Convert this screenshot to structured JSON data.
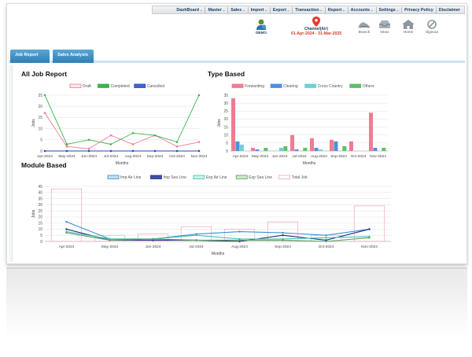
{
  "nav": {
    "items": [
      {
        "label": "DashBoard",
        "chev": true
      },
      {
        "label": "Master",
        "chev": true
      },
      {
        "label": "Sales",
        "chev": true
      },
      {
        "label": "Import",
        "chev": true
      },
      {
        "label": "Export",
        "chev": true
      },
      {
        "label": "Transaction",
        "chev": true
      },
      {
        "label": "Report",
        "chev": true
      },
      {
        "label": "Accounts",
        "chev": true
      },
      {
        "label": "Settings",
        "chev": true
      },
      {
        "label": "Privacy Policy",
        "chev": false
      },
      {
        "label": "Disclaimer",
        "chev": false
      }
    ]
  },
  "header": {
    "user_label": "DEMO",
    "channel_name": "Channel(Air)",
    "channel_dates": "01-Apr-2024 - 31-Mar-2025",
    "icons": [
      {
        "label": "Branch",
        "icon": "branch-icon"
      },
      {
        "label": "Inbox",
        "icon": "inbox-icon"
      },
      {
        "label": "Home",
        "icon": "home-icon"
      },
      {
        "label": "Signout",
        "icon": "signout-icon"
      }
    ]
  },
  "tabs": [
    {
      "label": "Job Report"
    },
    {
      "label": "Sales Analysis"
    }
  ],
  "panels": {
    "all_job_title": "All Job Report",
    "type_title": "Type Based",
    "module_title": "Module Based"
  },
  "colors": {
    "draft": "#f07c93",
    "completed": "#3cb44b",
    "cancelled": "#2546b8",
    "forwarding": "#f07c93",
    "clearing": "#4f8fe0",
    "cross_country": "#6fcfd6",
    "others": "#5fbf6a",
    "imp_air": "#3a8fd8",
    "imp_sea": "#1f2e8a",
    "exp_air": "#45c2b1",
    "exp_sea": "#5aa35a",
    "total_job": "#f2a5b4"
  },
  "chart_data": [
    {
      "id": "all_job",
      "type": "line",
      "title": "All Job Report",
      "xlabel": "Months",
      "ylabel": "Jobs",
      "categories": [
        "Apr-2024",
        "May-2024",
        "Jun-2024",
        "Jul-2024",
        "Aug-2024",
        "Sep-2024",
        "Oct-2024",
        "Nov-2024"
      ],
      "ylim": [
        0,
        25
      ],
      "yticks": [
        0,
        5,
        10,
        15,
        20,
        25
      ],
      "legend": "top",
      "series": [
        {
          "name": "Draft",
          "values": [
            17,
            2,
            1,
            7,
            3,
            7,
            2,
            4
          ]
        },
        {
          "name": "Completed",
          "values": [
            25,
            3,
            5,
            3,
            8,
            7,
            4,
            25
          ]
        },
        {
          "name": "Cancelled",
          "values": [
            0,
            0,
            0,
            0,
            0,
            0,
            0,
            0
          ]
        }
      ]
    },
    {
      "id": "type_based",
      "type": "bar",
      "title": "Type Based",
      "xlabel": "Months",
      "ylabel": "Jobs",
      "categories": [
        "Apr-2024",
        "May-2024",
        "Jun-2024",
        "Jul-2024",
        "Aug-2024",
        "Sep-2024",
        "Oct-2024",
        "Nov-2024"
      ],
      "ylim": [
        0,
        35
      ],
      "yticks": [
        0,
        5,
        10,
        15,
        20,
        25,
        30,
        35
      ],
      "legend": "top",
      "series": [
        {
          "name": "Forwarding",
          "values": [
            33,
            2,
            0,
            10,
            8,
            7,
            6,
            24
          ]
        },
        {
          "name": "Clearing",
          "values": [
            6,
            1,
            0,
            1,
            2,
            6,
            0,
            2
          ]
        },
        {
          "name": "Cross Country",
          "values": [
            4,
            0,
            2,
            0,
            1,
            0,
            0,
            0
          ]
        },
        {
          "name": "Others",
          "values": [
            0,
            2,
            3,
            2,
            0,
            3,
            0,
            2
          ]
        }
      ]
    },
    {
      "id": "module_based",
      "type": "line",
      "title": "Module Based",
      "xlabel": "Months",
      "ylabel": "Jobs",
      "categories": [
        "Apr-2024",
        "May-2024",
        "Jun-2024",
        "Jul-2024",
        "Aug-2024",
        "Sep-2024",
        "Oct-2024",
        "Nov-2024"
      ],
      "ylim": [
        0,
        45
      ],
      "yticks": [
        0,
        5,
        10,
        15,
        20,
        25,
        30,
        35,
        40,
        45
      ],
      "legend": "top",
      "bar_series": {
        "name": "Total Job",
        "values": [
          43,
          5,
          6,
          12,
          10,
          16,
          5,
          29
        ]
      },
      "series": [
        {
          "name": "Imp Air Line",
          "values": [
            16,
            2,
            2,
            6,
            8,
            7,
            5,
            10
          ]
        },
        {
          "name": "Imp Sea Line",
          "values": [
            10,
            1,
            1,
            1,
            0,
            5,
            1,
            10
          ]
        },
        {
          "name": "Exp Air Line",
          "values": [
            8,
            2,
            2,
            5,
            2,
            2,
            3,
            4
          ]
        },
        {
          "name": "Exp Sea Line",
          "values": [
            7,
            1,
            2,
            1,
            1,
            1,
            0,
            3
          ]
        }
      ]
    }
  ]
}
